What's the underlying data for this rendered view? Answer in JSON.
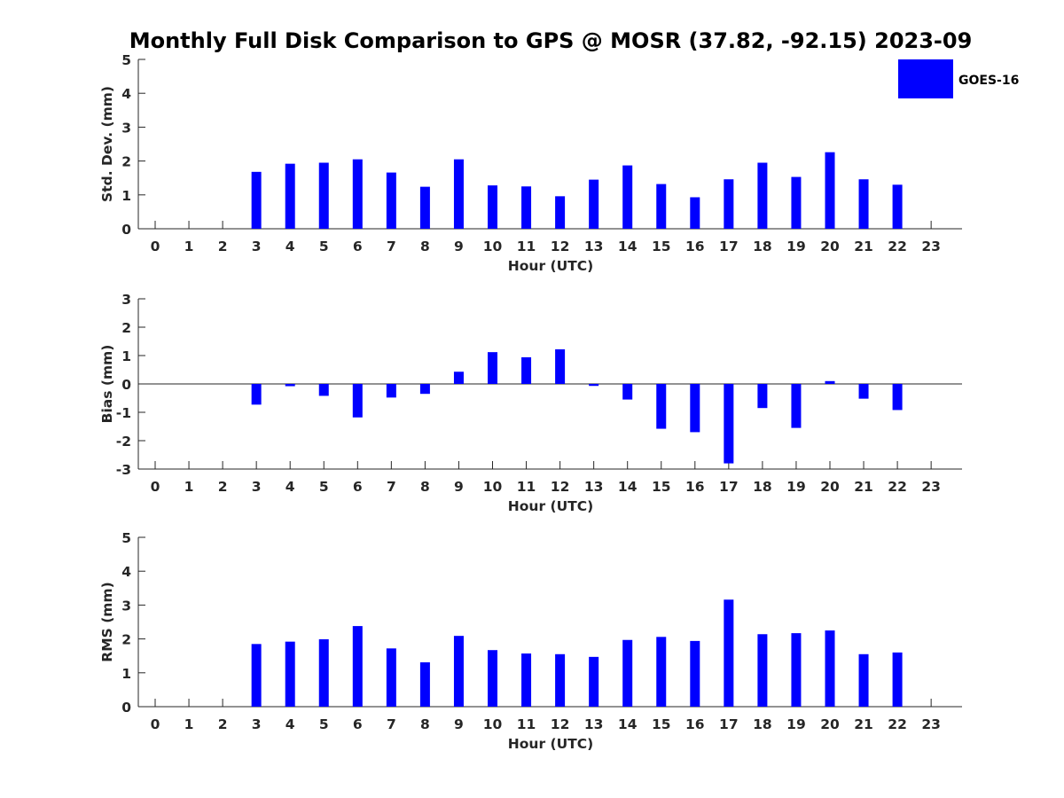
{
  "title": "Monthly Full Disk Comparison to GPS @ MOSR (37.82, -92.15) 2023-09",
  "legend": {
    "label": "GOES-16",
    "color": "#0000ff"
  },
  "chart_data": [
    {
      "type": "bar",
      "ylabel": "Std. Dev. (mm)",
      "xlabel": "Hour (UTC)",
      "ylim": [
        0,
        5
      ],
      "yticks": [
        0,
        1,
        2,
        3,
        4,
        5
      ],
      "xticks": [
        0,
        1,
        2,
        3,
        4,
        5,
        6,
        7,
        8,
        9,
        10,
        11,
        12,
        13,
        14,
        15,
        16,
        17,
        18,
        19,
        20,
        21,
        22,
        23
      ],
      "series": [
        {
          "name": "GOES-16",
          "values": [
            null,
            null,
            null,
            1.68,
            1.92,
            1.95,
            2.05,
            1.66,
            1.24,
            2.05,
            1.28,
            1.25,
            0.96,
            1.45,
            1.87,
            1.32,
            0.93,
            1.46,
            1.95,
            1.53,
            2.26,
            1.46,
            1.3,
            null
          ]
        }
      ]
    },
    {
      "type": "bar",
      "ylabel": "Bias (mm)",
      "xlabel": "Hour (UTC)",
      "ylim": [
        -3,
        3
      ],
      "yticks": [
        -3,
        -2,
        -1,
        0,
        1,
        2,
        3
      ],
      "xticks": [
        0,
        1,
        2,
        3,
        4,
        5,
        6,
        7,
        8,
        9,
        10,
        11,
        12,
        13,
        14,
        15,
        16,
        17,
        18,
        19,
        20,
        21,
        22,
        23
      ],
      "series": [
        {
          "name": "GOES-16",
          "values": [
            null,
            null,
            null,
            -0.73,
            -0.08,
            -0.42,
            -1.18,
            -0.48,
            -0.35,
            0.43,
            1.12,
            0.94,
            1.22,
            -0.07,
            -0.55,
            -1.58,
            -1.7,
            -2.8,
            -0.85,
            -1.55,
            0.1,
            -0.52,
            -0.92,
            null
          ]
        }
      ]
    },
    {
      "type": "bar",
      "ylabel": "RMS (mm)",
      "xlabel": "Hour (UTC)",
      "ylim": [
        0,
        5
      ],
      "yticks": [
        0,
        1,
        2,
        3,
        4,
        5
      ],
      "xticks": [
        0,
        1,
        2,
        3,
        4,
        5,
        6,
        7,
        8,
        9,
        10,
        11,
        12,
        13,
        14,
        15,
        16,
        17,
        18,
        19,
        20,
        21,
        22,
        23
      ],
      "series": [
        {
          "name": "GOES-16",
          "values": [
            null,
            null,
            null,
            1.85,
            1.92,
            1.99,
            2.38,
            1.72,
            1.31,
            2.09,
            1.67,
            1.57,
            1.55,
            1.47,
            1.97,
            2.06,
            1.94,
            3.16,
            2.14,
            2.17,
            2.25,
            1.55,
            1.6,
            null
          ]
        }
      ]
    }
  ]
}
